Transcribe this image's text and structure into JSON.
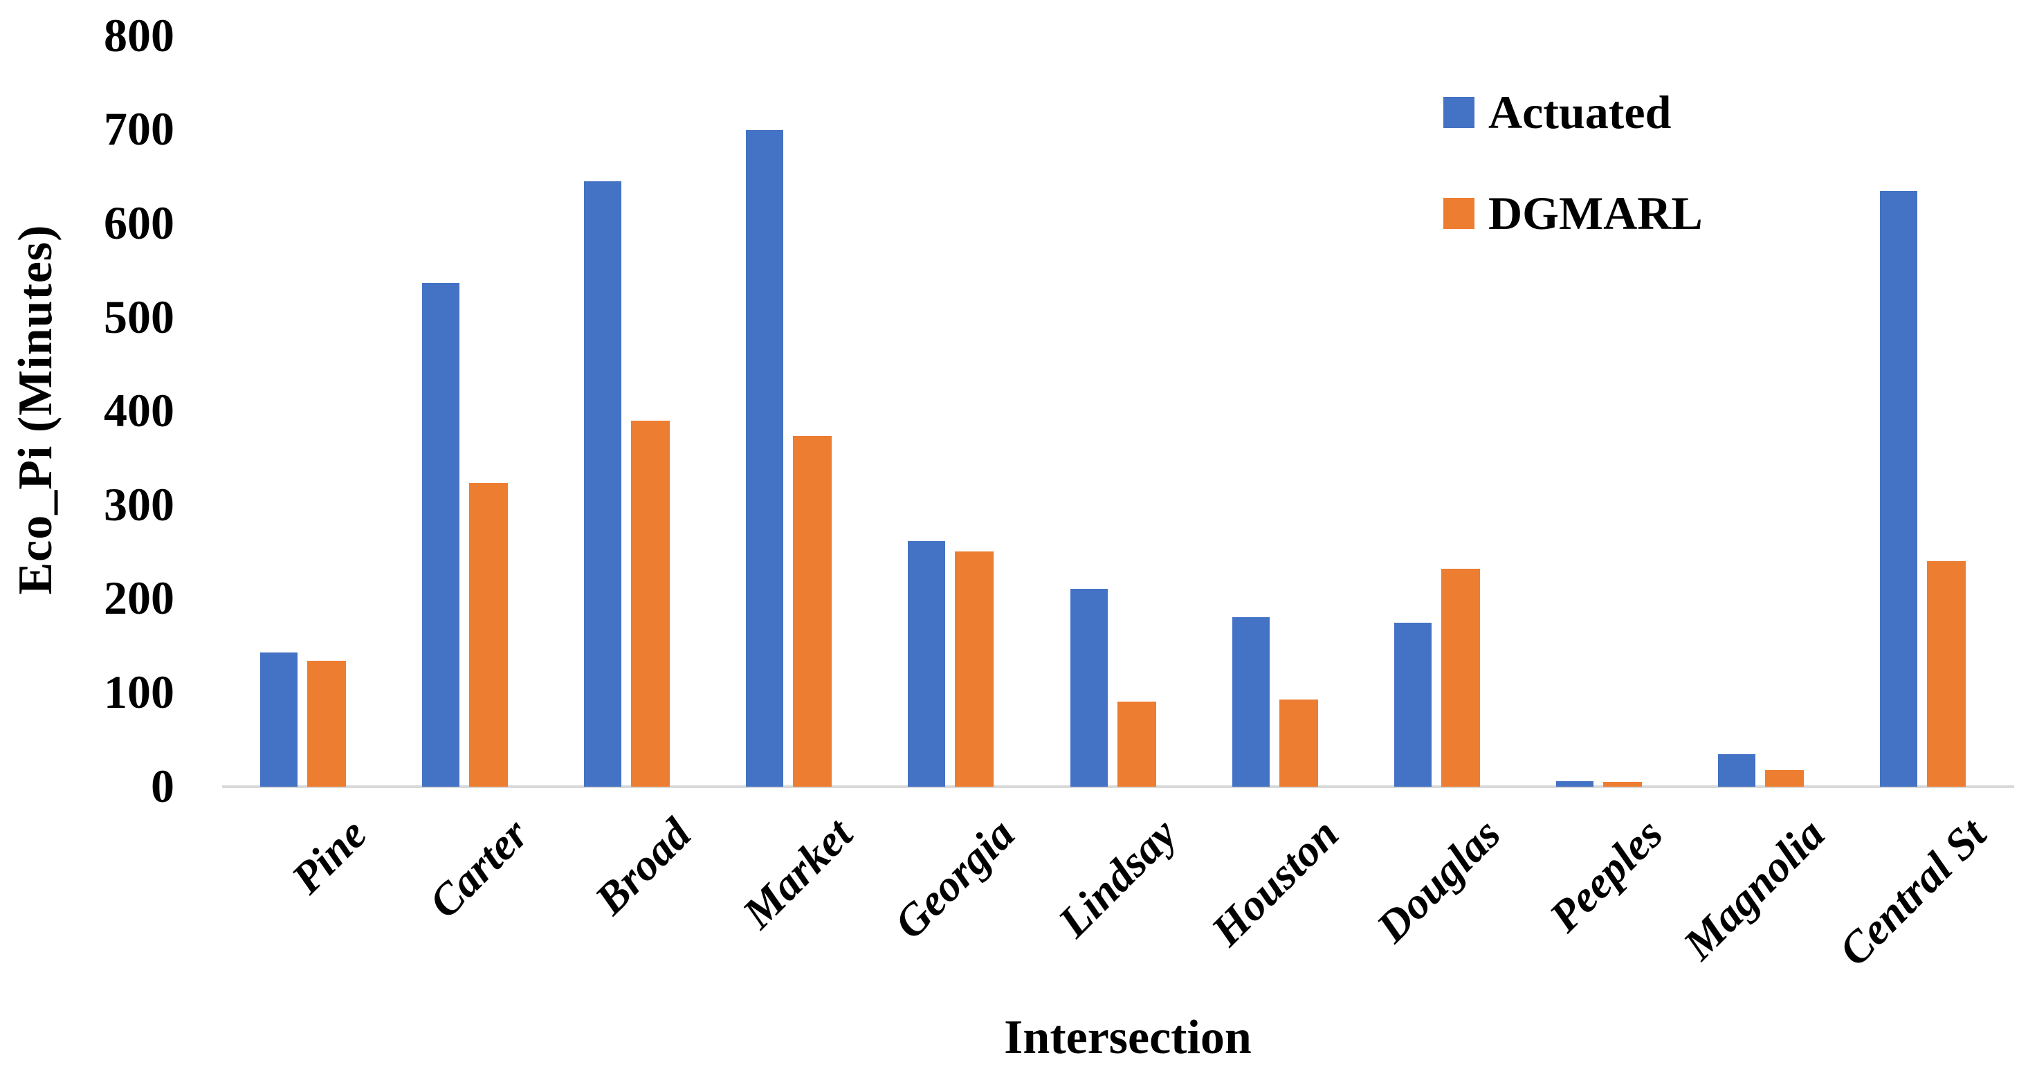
{
  "chart_data": {
    "type": "bar",
    "title": "",
    "xlabel": "Intersection",
    "ylabel": "Eco_Pi (Minutes)",
    "ylim": [
      0,
      800
    ],
    "y_tick_step": 100,
    "y_ticks": [
      "0",
      "100",
      "200",
      "300",
      "400",
      "500",
      "600",
      "700",
      "800"
    ],
    "grid": false,
    "legend_position": "top-right",
    "axis_line_color": "#D9D9D9",
    "categories": [
      "Pine",
      "Carter",
      "Broad",
      "Market",
      "Georgia",
      "Lindsay",
      "Houston",
      "Douglas",
      "Peeples",
      "Magnolia",
      "Central St"
    ],
    "series": [
      {
        "name": "Actuated",
        "color": "#4472C4",
        "values": [
          143,
          537,
          645,
          700,
          262,
          211,
          181,
          175,
          6,
          35,
          635
        ]
      },
      {
        "name": "DGMARL",
        "color": "#ED7D31",
        "values": [
          134,
          324,
          390,
          374,
          251,
          91,
          93,
          232,
          5,
          18,
          240
        ]
      }
    ]
  }
}
